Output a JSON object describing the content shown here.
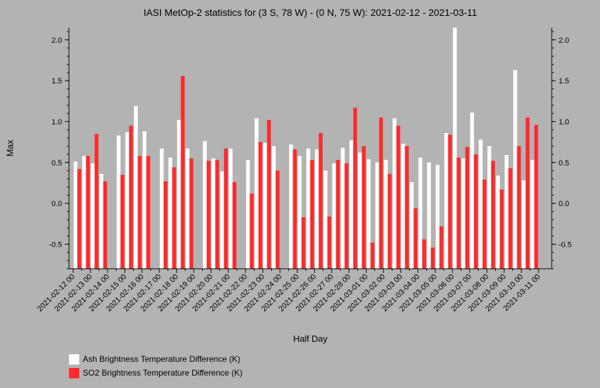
{
  "chart_data": {
    "type": "bar",
    "title": "IASI MetOp-2 statistics for (3 S, 78 W) - (0 N, 75 W): 2021-02-12 - 2021-03-11",
    "xlabel": "Half Day",
    "ylabel": "Max",
    "ylim": [
      -0.8,
      2.15
    ],
    "yticks": [
      "-0.5",
      "0.0",
      "0.5",
      "1.0",
      "1.5",
      "2.0"
    ],
    "ytick_values": [
      -0.5,
      0.0,
      0.5,
      1.0,
      1.5,
      2.0
    ],
    "xtick_labels": [
      "2021-02-12 00",
      "2021-02-13 00",
      "2021-02-14 00",
      "2021-02-15 00",
      "2021-02-16 00",
      "2021-02-17 00",
      "2021-02-18 00",
      "2021-02-19 00",
      "2021-02-20 00",
      "2021-02-21 00",
      "2021-02-22 00",
      "2021-02-23 00",
      "2021-02-24 00",
      "2021-02-25 00",
      "2021-02-26 00",
      "2021-02-27 00",
      "2021-02-28 00",
      "2021-03-01 00",
      "2021-03-02 00",
      "2021-03-03 00",
      "2021-03-04 00",
      "2021-03-05 00",
      "2021-03-06 00",
      "2021-03-07 00",
      "2021-03-08 00",
      "2021-03-09 00",
      "2021-03-10 00",
      "2021-03-11 00"
    ],
    "grid": false,
    "legend_position": "bottom-left",
    "series": [
      {
        "name": "Ash Brightness Temperature Difference (K)",
        "color": "#ffffff",
        "values": [
          0.51,
          0.58,
          0.49,
          0.36,
          null,
          0.83,
          0.87,
          1.19,
          0.88,
          null,
          0.67,
          0.56,
          1.02,
          0.67,
          null,
          0.76,
          0.55,
          0.39,
          0.67,
          null,
          0.53,
          1.04,
          0.74,
          0.7,
          null,
          0.72,
          0.58,
          0.67,
          0.66,
          0.4,
          0.49,
          0.68,
          0.77,
          0.62,
          0.54,
          0.5,
          0.53,
          1.04,
          0.73,
          0.26,
          0.56,
          0.5,
          0.47,
          0.86,
          2.15,
          0.55,
          1.11,
          0.78,
          0.7,
          0.34,
          0.59,
          1.63,
          0.28,
          0.53
        ]
      },
      {
        "name": "SO2 Brightness Temperature Difference (K)",
        "color": "#ff2a2a",
        "values": [
          0.42,
          0.58,
          0.85,
          0.27,
          null,
          0.35,
          0.95,
          0.58,
          0.58,
          null,
          0.27,
          0.44,
          1.56,
          0.55,
          null,
          0.52,
          0.53,
          0.67,
          0.26,
          null,
          0.12,
          0.75,
          1.02,
          0.4,
          null,
          0.66,
          -0.17,
          0.53,
          0.86,
          -0.16,
          0.53,
          0.49,
          1.17,
          0.7,
          -0.48,
          1.05,
          0.36,
          0.95,
          0.7,
          -0.06,
          -0.44,
          -0.54,
          -0.28,
          0.84,
          0.56,
          0.69,
          0.6,
          0.29,
          0.52,
          0.17,
          0.43,
          0.7,
          1.05,
          0.96
        ]
      }
    ]
  }
}
